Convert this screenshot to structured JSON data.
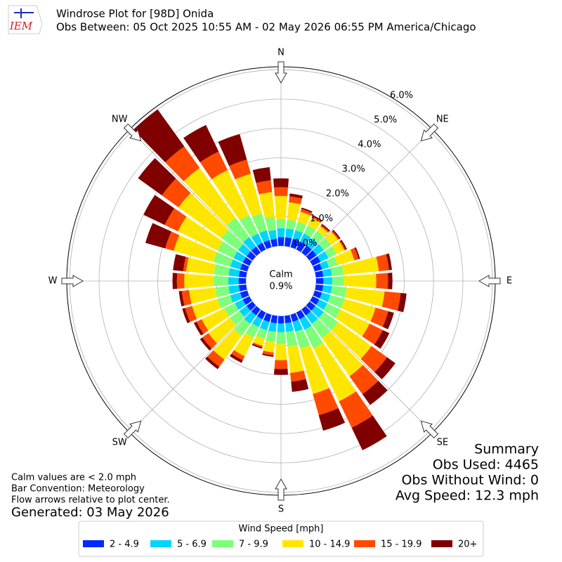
{
  "chart_data": {
    "type": "windrose",
    "title": "Windrose Plot for [98D] Onida",
    "subtitle": "Obs Between: 05 Oct 2025 10:55 AM - 02 May 2026 06:55 PM America/Chicago",
    "logo_text": "IEM",
    "directions": [
      0,
      10,
      20,
      30,
      40,
      50,
      60,
      70,
      80,
      90,
      100,
      110,
      120,
      130,
      140,
      150,
      160,
      170,
      180,
      190,
      200,
      210,
      220,
      230,
      240,
      250,
      260,
      270,
      280,
      290,
      300,
      310,
      320,
      330,
      340,
      350
    ],
    "direction_labels": [
      "N",
      "NE",
      "E",
      "SE",
      "S",
      "SW",
      "W",
      "NW"
    ],
    "rlim": [
      0,
      6.1
    ],
    "rticks": [
      {
        "value": 0,
        "label": "0.0%"
      },
      {
        "value": 1,
        "label": "1.0%"
      },
      {
        "value": 2,
        "label": "2.0%"
      },
      {
        "value": 3,
        "label": "3.0%"
      },
      {
        "value": 4,
        "label": "4.0%"
      },
      {
        "value": 5,
        "label": "5.0%"
      },
      {
        "value": 6,
        "label": "6.0%"
      }
    ],
    "calm_label": "Calm",
    "calm_value": 0.9,
    "calm_value_label": "0.9%",
    "legend_title": "Wind Speed [mph]",
    "series": [
      {
        "name": "2 - 4.9",
        "color": "#0028ff",
        "values": [
          0.3,
          0.3,
          0.3,
          0.3,
          0.3,
          0.3,
          0.3,
          0.25,
          0.25,
          0.25,
          0.25,
          0.25,
          0.25,
          0.25,
          0.25,
          0.25,
          0.25,
          0.25,
          0.25,
          0.25,
          0.25,
          0.25,
          0.25,
          0.25,
          0.25,
          0.25,
          0.25,
          0.25,
          0.25,
          0.25,
          0.25,
          0.25,
          0.25,
          0.25,
          0.25,
          0.25
        ]
      },
      {
        "name": "5 - 6.9",
        "color": "#00d4ff",
        "values": [
          0.3,
          0.3,
          0.3,
          0.3,
          0.3,
          0.3,
          0.3,
          0.25,
          0.3,
          0.3,
          0.3,
          0.3,
          0.3,
          0.35,
          0.35,
          0.4,
          0.35,
          0.3,
          0.3,
          0.3,
          0.3,
          0.3,
          0.35,
          0.3,
          0.3,
          0.35,
          0.35,
          0.35,
          0.35,
          0.35,
          0.35,
          0.35,
          0.4,
          0.35,
          0.35,
          0.3
        ]
      },
      {
        "name": "7 - 9.9",
        "color": "#7dff7a",
        "values": [
          0.3,
          0.3,
          0.3,
          0.3,
          0.3,
          0.3,
          0.3,
          0.3,
          0.4,
          0.4,
          0.5,
          0.5,
          0.5,
          0.6,
          0.6,
          0.7,
          0.6,
          0.5,
          0.4,
          0.35,
          0.3,
          0.4,
          0.5,
          0.4,
          0.4,
          0.45,
          0.45,
          0.5,
          0.5,
          0.6,
          0.6,
          0.7,
          0.8,
          0.7,
          0.6,
          0.45
        ]
      },
      {
        "name": "10 - 14.9",
        "color": "#ffe600",
        "values": [
          0.8,
          0.6,
          0.35,
          0.3,
          0.2,
          0.3,
          0.3,
          0.6,
          1.2,
          1.1,
          1.3,
          1.1,
          1.1,
          1.4,
          1.6,
          2.0,
          1.6,
          0.9,
          0.55,
          0.35,
          0.25,
          0.7,
          1.0,
          0.9,
          0.85,
          0.9,
          0.9,
          1.0,
          0.95,
          1.4,
          1.5,
          1.8,
          2.1,
          1.7,
          1.4,
          0.85
        ]
      },
      {
        "name": "15 - 19.9",
        "color": "#ff4a00",
        "values": [
          0.3,
          0.2,
          0.1,
          0.05,
          0.05,
          0.05,
          0.05,
          0.15,
          0.35,
          0.4,
          0.55,
          0.45,
          0.5,
          0.65,
          0.75,
          1.0,
          0.75,
          0.3,
          0.3,
          0.1,
          0.05,
          0.15,
          0.3,
          0.25,
          0.2,
          0.25,
          0.25,
          0.25,
          0.1,
          0.3,
          0.5,
          0.7,
          0.9,
          0.7,
          0.5,
          0.4
        ]
      },
      {
        "name": "20+",
        "color": "#800000",
        "values": [
          0.3,
          0.1,
          0.05,
          0.05,
          0.05,
          0.05,
          0.05,
          0.05,
          0.1,
          0.15,
          0.2,
          0.2,
          0.25,
          0.35,
          0.45,
          0.85,
          0.55,
          0.35,
          0.2,
          0.05,
          0.05,
          0.1,
          0.1,
          0.1,
          0.1,
          0.1,
          0.1,
          0.15,
          0.35,
          0.7,
          0.8,
          1.0,
          1.55,
          1.0,
          0.9,
          0.45
        ]
      }
    ],
    "notes": [
      "Calm values are < 2.0 mph",
      "Bar Convention: Meteorology",
      "Flow arrows relative to plot center."
    ],
    "generated": "Generated: 03 May 2026",
    "summary": [
      "Summary",
      "Obs Used: 4465",
      "Obs Without Wind: 0",
      "Avg Speed: 12.3 mph"
    ]
  }
}
